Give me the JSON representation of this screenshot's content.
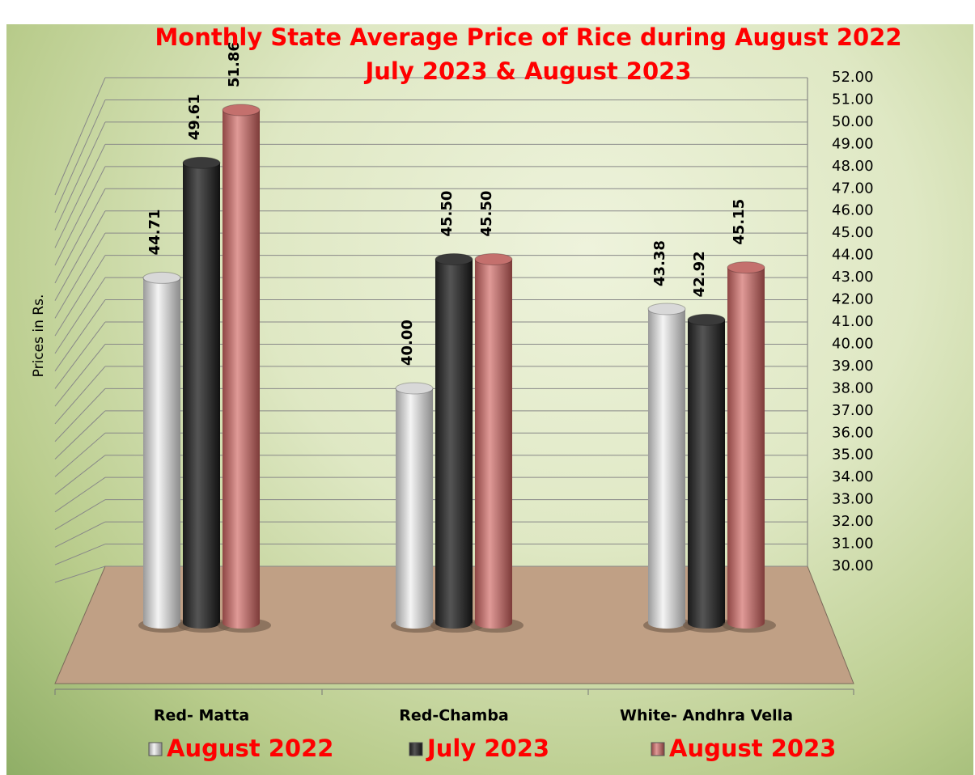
{
  "chart_data": {
    "type": "bar3d",
    "title": "Monthly State Average Price of Rice during  August 2022  July 2023  &  August 2023",
    "ylabel": "Prices in Rs.",
    "categories": [
      "Red- Matta",
      "Red-Chamba",
      "White- Andhra Vella"
    ],
    "series": [
      {
        "name": "August 2022",
        "color": "#d8d8d8",
        "values": [
          44.71,
          40.0,
          43.38
        ],
        "value_labels": [
          "44.71",
          "40.00",
          "43.38"
        ]
      },
      {
        "name": "July 2023",
        "color": "#3a3a3a",
        "values": [
          49.61,
          45.5,
          42.92
        ],
        "value_labels": [
          "49.61",
          "45.50",
          "42.92"
        ]
      },
      {
        "name": "August 2023",
        "color": "#c4706d",
        "values": [
          51.86,
          45.5,
          45.15
        ],
        "value_labels": [
          "51.86",
          "45.50",
          "45.15"
        ]
      }
    ],
    "ylim": [
      30,
      52
    ],
    "yticks": [
      {
        "value": 30,
        "label": "30.00"
      },
      {
        "value": 31,
        "label": "31.00"
      },
      {
        "value": 32,
        "label": "32.00"
      },
      {
        "value": 33,
        "label": "33.00"
      },
      {
        "value": 34,
        "label": "34.00"
      },
      {
        "value": 35,
        "label": "35.00"
      },
      {
        "value": 36,
        "label": "36.00"
      },
      {
        "value": 37,
        "label": "37.00"
      },
      {
        "value": 38,
        "label": "38.00"
      },
      {
        "value": 39,
        "label": "39.00"
      },
      {
        "value": 40,
        "label": "40.00"
      },
      {
        "value": 41,
        "label": "41.00"
      },
      {
        "value": 42,
        "label": "42.00"
      },
      {
        "value": 43,
        "label": "43.00"
      },
      {
        "value": 44,
        "label": "44.00"
      },
      {
        "value": 45,
        "label": "45.00"
      },
      {
        "value": 46,
        "label": "46.00"
      },
      {
        "value": 47,
        "label": "47.00"
      },
      {
        "value": 48,
        "label": "48.00"
      },
      {
        "value": 49,
        "label": "49.00"
      },
      {
        "value": 50,
        "label": "50.00"
      },
      {
        "value": 51,
        "label": "51.00"
      },
      {
        "value": 52,
        "label": "52.00"
      }
    ],
    "grid": true,
    "legend": "bottom"
  }
}
